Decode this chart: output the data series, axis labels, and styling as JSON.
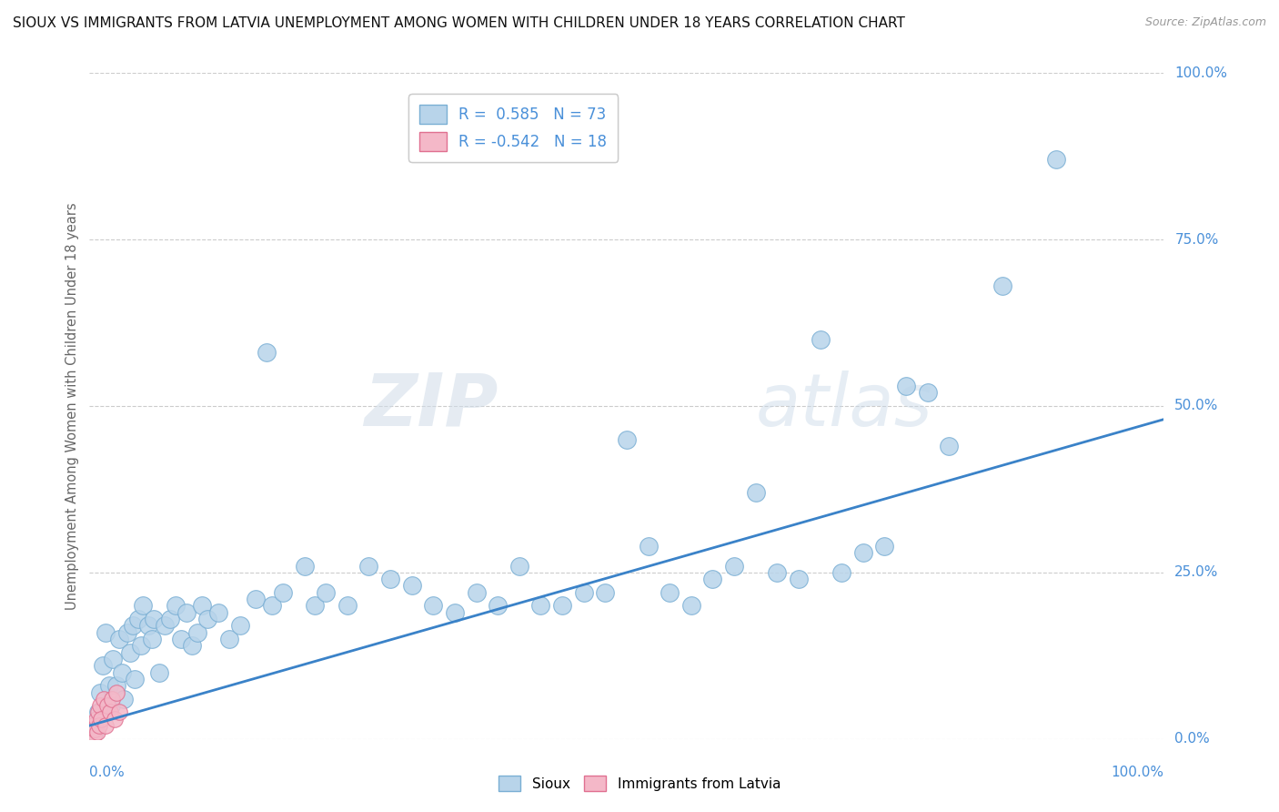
{
  "title": "SIOUX VS IMMIGRANTS FROM LATVIA UNEMPLOYMENT AMONG WOMEN WITH CHILDREN UNDER 18 YEARS CORRELATION CHART",
  "source": "Source: ZipAtlas.com",
  "ylabel": "Unemployment Among Women with Children Under 18 years",
  "r_sioux": 0.585,
  "n_sioux": 73,
  "r_latvia": -0.542,
  "n_latvia": 18,
  "watermark_zip": "ZIP",
  "watermark_atlas": "atlas",
  "sioux_color": "#b8d4ea",
  "sioux_edge": "#7aafd4",
  "latvia_color": "#f4b8c8",
  "latvia_edge": "#e07090",
  "line_color": "#3a82c8",
  "line_y0": 0.02,
  "line_y1": 0.48,
  "sioux_x": [
    0.005,
    0.008,
    0.01,
    0.012,
    0.015,
    0.018,
    0.02,
    0.022,
    0.025,
    0.028,
    0.03,
    0.032,
    0.035,
    0.038,
    0.04,
    0.042,
    0.045,
    0.048,
    0.05,
    0.055,
    0.058,
    0.06,
    0.065,
    0.07,
    0.075,
    0.08,
    0.085,
    0.09,
    0.095,
    0.1,
    0.105,
    0.11,
    0.12,
    0.13,
    0.14,
    0.155,
    0.165,
    0.17,
    0.18,
    0.2,
    0.21,
    0.22,
    0.24,
    0.26,
    0.28,
    0.3,
    0.32,
    0.34,
    0.36,
    0.38,
    0.4,
    0.42,
    0.44,
    0.46,
    0.48,
    0.5,
    0.52,
    0.54,
    0.56,
    0.58,
    0.6,
    0.62,
    0.64,
    0.66,
    0.68,
    0.7,
    0.72,
    0.74,
    0.76,
    0.78,
    0.8,
    0.85,
    0.9
  ],
  "sioux_y": [
    0.01,
    0.04,
    0.07,
    0.11,
    0.16,
    0.08,
    0.05,
    0.12,
    0.08,
    0.15,
    0.1,
    0.06,
    0.16,
    0.13,
    0.17,
    0.09,
    0.18,
    0.14,
    0.2,
    0.17,
    0.15,
    0.18,
    0.1,
    0.17,
    0.18,
    0.2,
    0.15,
    0.19,
    0.14,
    0.16,
    0.2,
    0.18,
    0.19,
    0.15,
    0.17,
    0.21,
    0.58,
    0.2,
    0.22,
    0.26,
    0.2,
    0.22,
    0.2,
    0.26,
    0.24,
    0.23,
    0.2,
    0.19,
    0.22,
    0.2,
    0.26,
    0.2,
    0.2,
    0.22,
    0.22,
    0.45,
    0.29,
    0.22,
    0.2,
    0.24,
    0.26,
    0.37,
    0.25,
    0.24,
    0.6,
    0.25,
    0.28,
    0.29,
    0.53,
    0.52,
    0.44,
    0.68,
    0.87
  ],
  "latvia_x": [
    0.002,
    0.003,
    0.004,
    0.005,
    0.006,
    0.007,
    0.008,
    0.009,
    0.01,
    0.011,
    0.013,
    0.015,
    0.017,
    0.019,
    0.021,
    0.023,
    0.025,
    0.028
  ],
  "latvia_y": [
    0.01,
    0.02,
    0.005,
    0.015,
    0.03,
    0.01,
    0.04,
    0.02,
    0.05,
    0.03,
    0.06,
    0.02,
    0.05,
    0.04,
    0.06,
    0.03,
    0.07,
    0.04
  ],
  "xmin": 0.0,
  "xmax": 1.0,
  "ymin": 0.0,
  "ymax": 1.0,
  "yticks": [
    0.0,
    0.25,
    0.5,
    0.75,
    1.0
  ],
  "ytick_labels": [
    "0.0%",
    "25.0%",
    "50.0%",
    "75.0%",
    "100.0%"
  ],
  "grid_color": "#cccccc",
  "tick_color": "#4a90d9",
  "ylabel_color": "#666666",
  "title_color": "#111111",
  "source_color": "#999999"
}
